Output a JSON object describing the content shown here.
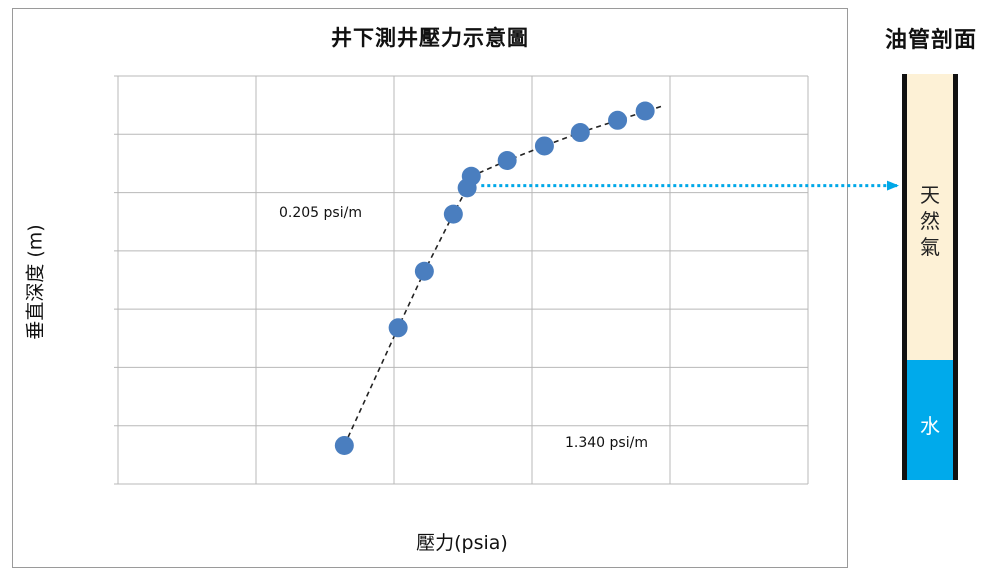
{
  "chart_data": {
    "type": "scatter",
    "title": "井下測井壓力示意圖",
    "xlabel": "壓力(psia)",
    "ylabel": "垂直深度 (m)",
    "xlim": [
      0,
      5
    ],
    "ylim": [
      7,
      0
    ],
    "grid": true,
    "tick_labels_shown": false,
    "points": [
      {
        "x": 1.64,
        "y": 0.66
      },
      {
        "x": 2.03,
        "y": 2.68
      },
      {
        "x": 2.22,
        "y": 3.65
      },
      {
        "x": 2.43,
        "y": 4.63
      },
      {
        "x": 2.53,
        "y": 5.08
      },
      {
        "x": 2.56,
        "y": 5.28
      },
      {
        "x": 2.82,
        "y": 5.55
      },
      {
        "x": 3.09,
        "y": 5.8
      },
      {
        "x": 3.35,
        "y": 6.03
      },
      {
        "x": 3.62,
        "y": 6.24
      },
      {
        "x": 3.82,
        "y": 6.4
      }
    ],
    "trend_line": [
      {
        "x": 1.64,
        "y": 0.66
      },
      {
        "x": 2.03,
        "y": 2.68
      },
      {
        "x": 2.22,
        "y": 3.65
      },
      {
        "x": 2.43,
        "y": 4.63
      },
      {
        "x": 2.53,
        "y": 5.08
      },
      {
        "x": 2.56,
        "y": 5.28
      },
      {
        "x": 2.82,
        "y": 5.55
      },
      {
        "x": 3.09,
        "y": 5.8
      },
      {
        "x": 3.35,
        "y": 6.03
      },
      {
        "x": 3.62,
        "y": 6.24
      },
      {
        "x": 3.94,
        "y": 6.48
      }
    ],
    "annotations": [
      "0.205  psi/m",
      "1.340  psi/m"
    ],
    "colors": {
      "points": "#4a7ebf",
      "trend_line": "#222222",
      "arrow": "#00a8e8",
      "grid": "#b8b8b8"
    }
  },
  "tube": {
    "title": "油管剖面",
    "gas_label": "天然氣",
    "water_label": "水",
    "gas_color": "#fdf1d6",
    "water_color": "#00aaeb",
    "water_contact_depth": 5.12
  }
}
